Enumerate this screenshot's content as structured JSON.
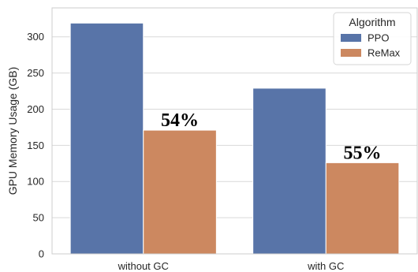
{
  "chart_data": {
    "type": "bar",
    "categories": [
      "without GC",
      "with GC"
    ],
    "series": [
      {
        "name": "PPO",
        "values": [
          319,
          229
        ],
        "color": "#5874a8"
      },
      {
        "name": "ReMax",
        "values": [
          171,
          126
        ],
        "color": "#cc8860"
      }
    ],
    "ylabel": "GPU Memory Usage (GB)",
    "xlabel": "",
    "ylim": [
      0,
      340
    ],
    "yticks": [
      0,
      50,
      100,
      150,
      200,
      250,
      300
    ],
    "grid": true,
    "legend": {
      "title": "Algorithm",
      "placement": "top-right"
    },
    "annotations": [
      {
        "text": "54%",
        "category": "without GC"
      },
      {
        "text": "55%",
        "category": "with GC"
      }
    ]
  }
}
